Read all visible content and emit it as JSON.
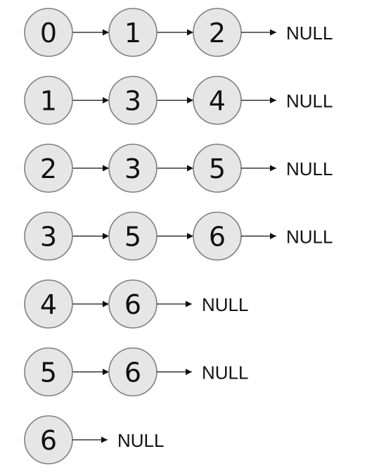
{
  "lists": [
    {
      "nodes": [
        "0",
        "1",
        "2"
      ],
      "terminator": "NULL"
    },
    {
      "nodes": [
        "1",
        "3",
        "4"
      ],
      "terminator": "NULL"
    },
    {
      "nodes": [
        "2",
        "3",
        "5"
      ],
      "terminator": "NULL"
    },
    {
      "nodes": [
        "3",
        "5",
        "6"
      ],
      "terminator": "NULL"
    },
    {
      "nodes": [
        "4",
        "6"
      ],
      "terminator": "NULL"
    },
    {
      "nodes": [
        "5",
        "6"
      ],
      "terminator": "NULL"
    },
    {
      "nodes": [
        "6"
      ],
      "terminator": "NULL"
    }
  ],
  "colors": {
    "node_fill": "#e6e6e6",
    "node_stroke": "#7f7f7f",
    "text": "#111111",
    "arrow": "#111111"
  }
}
